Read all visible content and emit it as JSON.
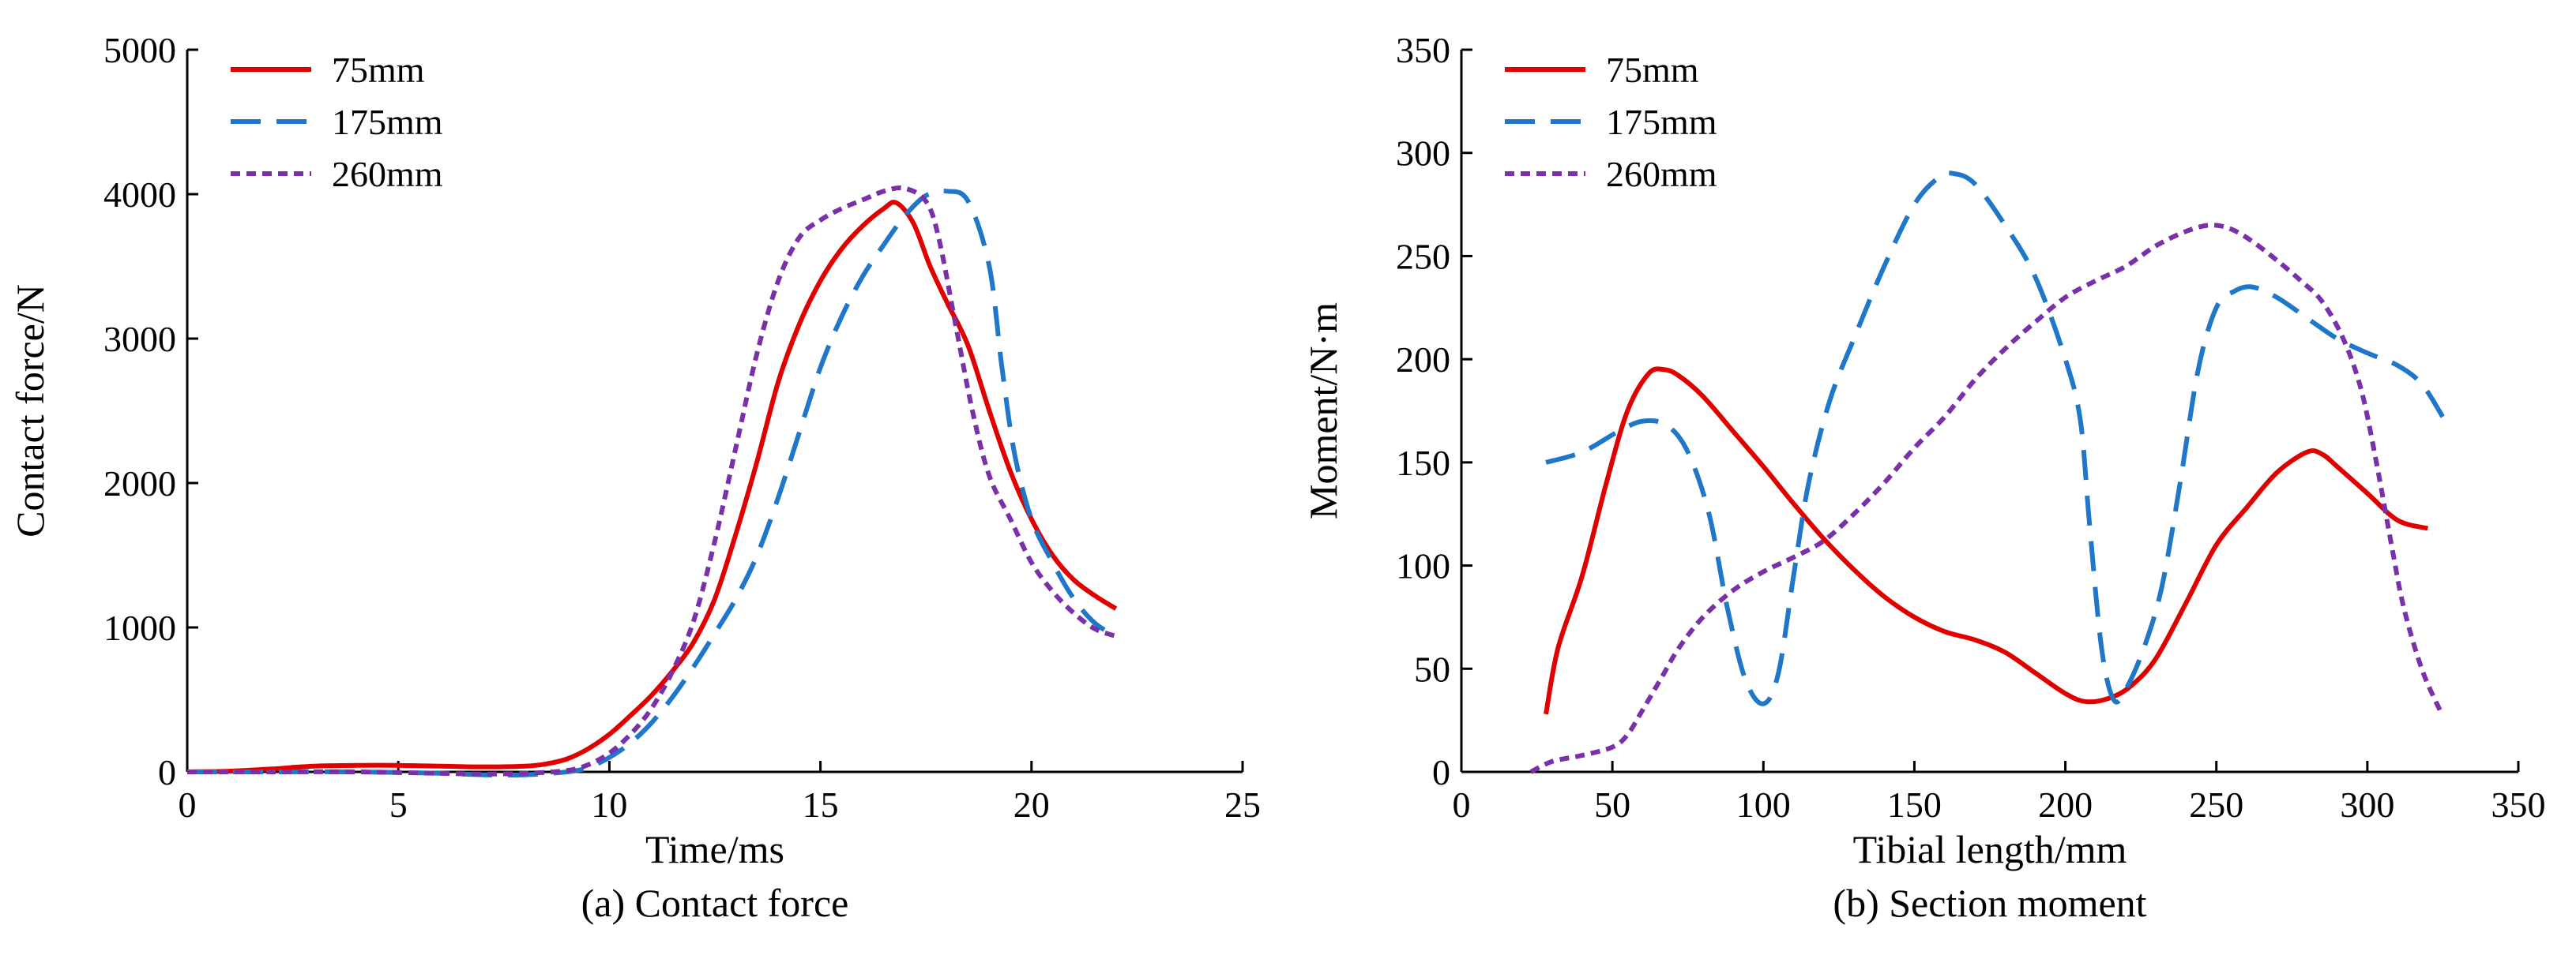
{
  "chart_data": [
    {
      "type": "line",
      "caption": "(a) Contact force",
      "xlabel": "Time/ms",
      "ylabel": "Contact force/N",
      "xlim": [
        0,
        25
      ],
      "ylim": [
        0,
        5000
      ],
      "xticks": [
        "0",
        "5",
        "10",
        "15",
        "20",
        "25"
      ],
      "yticks": [
        "0",
        "1000",
        "2000",
        "3000",
        "4000",
        "5000"
      ],
      "legend_position": "top-left",
      "series": [
        {
          "name": "75mm",
          "color": "#e00000",
          "dash": "solid",
          "points": [
            [
              0,
              0
            ],
            [
              1,
              5
            ],
            [
              2,
              20
            ],
            [
              3,
              40
            ],
            [
              4,
              45
            ],
            [
              5,
              45
            ],
            [
              6,
              40
            ],
            [
              7,
              35
            ],
            [
              8,
              40
            ],
            [
              8.5,
              55
            ],
            [
              9,
              90
            ],
            [
              9.5,
              160
            ],
            [
              10,
              260
            ],
            [
              10.5,
              390
            ],
            [
              11,
              530
            ],
            [
              11.5,
              700
            ],
            [
              12,
              900
            ],
            [
              12.5,
              1200
            ],
            [
              13,
              1650
            ],
            [
              13.5,
              2150
            ],
            [
              14,
              2700
            ],
            [
              14.5,
              3100
            ],
            [
              15,
              3400
            ],
            [
              15.5,
              3620
            ],
            [
              16,
              3780
            ],
            [
              16.5,
              3900
            ],
            [
              16.8,
              3940
            ],
            [
              17.2,
              3800
            ],
            [
              17.6,
              3500
            ],
            [
              18,
              3250
            ],
            [
              18.5,
              2950
            ],
            [
              19,
              2500
            ],
            [
              19.5,
              2080
            ],
            [
              20,
              1750
            ],
            [
              20.5,
              1500
            ],
            [
              21,
              1330
            ],
            [
              21.5,
              1220
            ],
            [
              22,
              1130
            ]
          ]
        },
        {
          "name": "175mm",
          "color": "#1f77c9",
          "dash": "long-dash",
          "points": [
            [
              0,
              0
            ],
            [
              2,
              0
            ],
            [
              4,
              0
            ],
            [
              6,
              -10
            ],
            [
              7,
              -20
            ],
            [
              8,
              -20
            ],
            [
              9,
              0
            ],
            [
              9.5,
              30
            ],
            [
              10,
              100
            ],
            [
              10.5,
              200
            ],
            [
              11,
              340
            ],
            [
              11.5,
              520
            ],
            [
              12,
              730
            ],
            [
              12.5,
              960
            ],
            [
              13,
              1200
            ],
            [
              13.5,
              1500
            ],
            [
              14,
              1900
            ],
            [
              14.5,
              2350
            ],
            [
              15,
              2800
            ],
            [
              15.5,
              3150
            ],
            [
              16,
              3430
            ],
            [
              16.5,
              3650
            ],
            [
              17,
              3850
            ],
            [
              17.5,
              3990
            ],
            [
              18,
              4020
            ],
            [
              18.5,
              3950
            ],
            [
              19,
              3500
            ],
            [
              19.3,
              2800
            ],
            [
              19.6,
              2200
            ],
            [
              20,
              1750
            ],
            [
              20.5,
              1450
            ],
            [
              21,
              1200
            ],
            [
              21.5,
              1030
            ],
            [
              22,
              940
            ]
          ]
        },
        {
          "name": "260mm",
          "color": "#7a30a8",
          "dash": "short-dash",
          "points": [
            [
              0,
              0
            ],
            [
              2,
              0
            ],
            [
              4,
              0
            ],
            [
              6,
              -10
            ],
            [
              7,
              -15
            ],
            [
              8,
              -10
            ],
            [
              9,
              10
            ],
            [
              9.5,
              50
            ],
            [
              10,
              130
            ],
            [
              10.5,
              260
            ],
            [
              11,
              440
            ],
            [
              11.5,
              700
            ],
            [
              12,
              1050
            ],
            [
              12.5,
              1600
            ],
            [
              13,
              2250
            ],
            [
              13.5,
              2900
            ],
            [
              14,
              3400
            ],
            [
              14.5,
              3700
            ],
            [
              15,
              3820
            ],
            [
              15.5,
              3900
            ],
            [
              16,
              3960
            ],
            [
              16.5,
              4020
            ],
            [
              17,
              4040
            ],
            [
              17.5,
              3950
            ],
            [
              17.8,
              3700
            ],
            [
              18.2,
              3100
            ],
            [
              18.6,
              2500
            ],
            [
              19,
              2050
            ],
            [
              19.5,
              1750
            ],
            [
              20,
              1450
            ],
            [
              20.5,
              1250
            ],
            [
              21,
              1100
            ],
            [
              21.5,
              990
            ],
            [
              22,
              940
            ]
          ]
        }
      ]
    },
    {
      "type": "line",
      "caption": "(b) Section moment",
      "xlabel": "Tibial length/mm",
      "ylabel": "Moment/N·m",
      "xlim": [
        0,
        350
      ],
      "ylim": [
        0,
        350
      ],
      "xticks": [
        "0",
        "50",
        "100",
        "150",
        "200",
        "250",
        "300",
        "350"
      ],
      "yticks": [
        "0",
        "50",
        "100",
        "150",
        "200",
        "250",
        "300",
        "350"
      ],
      "legend_position": "top-left",
      "series": [
        {
          "name": "75mm",
          "color": "#e00000",
          "dash": "solid",
          "points": [
            [
              28,
              28
            ],
            [
              32,
              60
            ],
            [
              40,
              95
            ],
            [
              48,
              140
            ],
            [
              55,
              175
            ],
            [
              62,
              193
            ],
            [
              67,
              195
            ],
            [
              72,
              192
            ],
            [
              80,
              182
            ],
            [
              90,
              165
            ],
            [
              100,
              148
            ],
            [
              110,
              130
            ],
            [
              120,
              113
            ],
            [
              130,
              98
            ],
            [
              140,
              85
            ],
            [
              150,
              75
            ],
            [
              160,
              68
            ],
            [
              170,
              64
            ],
            [
              180,
              58
            ],
            [
              190,
              48
            ],
            [
              200,
              38
            ],
            [
              207,
              34
            ],
            [
              215,
              36
            ],
            [
              222,
              42
            ],
            [
              230,
              55
            ],
            [
              240,
              82
            ],
            [
              250,
              110
            ],
            [
              260,
              128
            ],
            [
              270,
              145
            ],
            [
              280,
              155
            ],
            [
              285,
              154
            ],
            [
              290,
              148
            ],
            [
              300,
              135
            ],
            [
              310,
              122
            ],
            [
              320,
              118
            ]
          ]
        },
        {
          "name": "175mm",
          "color": "#1f77c9",
          "dash": "long-dash",
          "points": [
            [
              28,
              150
            ],
            [
              40,
              155
            ],
            [
              52,
              165
            ],
            [
              60,
              170
            ],
            [
              68,
              168
            ],
            [
              75,
              155
            ],
            [
              82,
              125
            ],
            [
              88,
              80
            ],
            [
              94,
              45
            ],
            [
              100,
              33
            ],
            [
              105,
              48
            ],
            [
              110,
              95
            ],
            [
              115,
              140
            ],
            [
              122,
              180
            ],
            [
              130,
              210
            ],
            [
              140,
              245
            ],
            [
              150,
              275
            ],
            [
              158,
              288
            ],
            [
              163,
              290
            ],
            [
              170,
              285
            ],
            [
              180,
              265
            ],
            [
              190,
              240
            ],
            [
              200,
              200
            ],
            [
              205,
              170
            ],
            [
              208,
              120
            ],
            [
              212,
              60
            ],
            [
              216,
              35
            ],
            [
              220,
              40
            ],
            [
              226,
              60
            ],
            [
              232,
              90
            ],
            [
              238,
              140
            ],
            [
              244,
              195
            ],
            [
              250,
              225
            ],
            [
              256,
              233
            ],
            [
              262,
              235
            ],
            [
              270,
              230
            ],
            [
              280,
              220
            ],
            [
              290,
              210
            ],
            [
              300,
              203
            ],
            [
              310,
              197
            ],
            [
              318,
              188
            ],
            [
              325,
              172
            ]
          ]
        },
        {
          "name": "260mm",
          "color": "#7a30a8",
          "dash": "short-dash",
          "points": [
            [
              23,
              0
            ],
            [
              30,
              5
            ],
            [
              40,
              8
            ],
            [
              50,
              12
            ],
            [
              55,
              18
            ],
            [
              60,
              30
            ],
            [
              66,
              45
            ],
            [
              72,
              60
            ],
            [
              80,
              75
            ],
            [
              90,
              88
            ],
            [
              100,
              97
            ],
            [
              110,
              104
            ],
            [
              120,
              112
            ],
            [
              130,
              125
            ],
            [
              140,
              140
            ],
            [
              150,
              157
            ],
            [
              160,
              172
            ],
            [
              170,
              190
            ],
            [
              180,
              205
            ],
            [
              190,
              218
            ],
            [
              200,
              230
            ],
            [
              210,
              238
            ],
            [
              220,
              245
            ],
            [
              230,
              255
            ],
            [
              240,
              262
            ],
            [
              248,
              265
            ],
            [
              255,
              263
            ],
            [
              262,
              257
            ],
            [
              270,
              248
            ],
            [
              278,
              238
            ],
            [
              285,
              228
            ],
            [
              292,
              210
            ],
            [
              298,
              185
            ],
            [
              303,
              150
            ],
            [
              308,
              110
            ],
            [
              312,
              80
            ],
            [
              318,
              50
            ],
            [
              324,
              30
            ]
          ]
        }
      ]
    }
  ]
}
